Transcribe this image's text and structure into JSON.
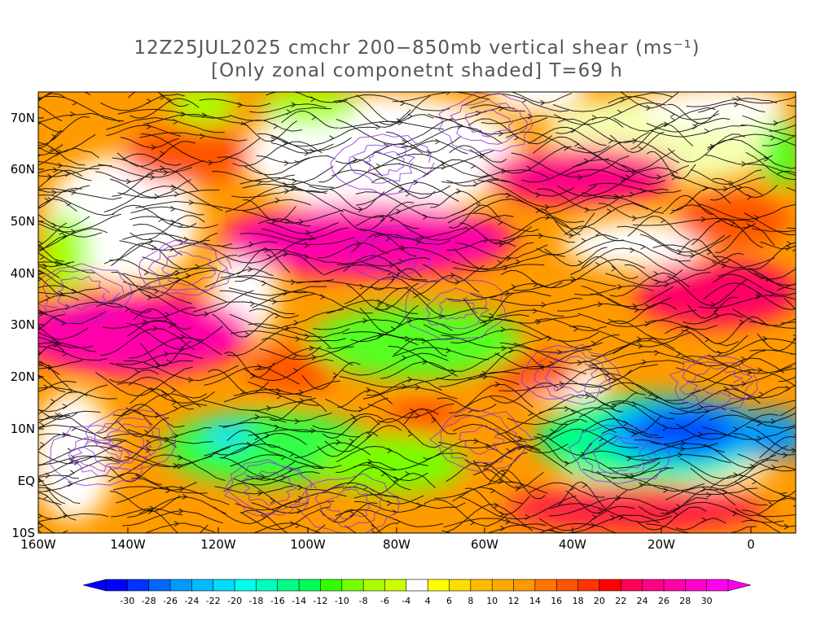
{
  "title": {
    "line1": "12Z25JUL2025 cmchr 200−850mb vertical shear (ms⁻¹)",
    "line2": "[Only zonal componetnt shaded] T=69 h"
  },
  "map": {
    "lon_labels": [
      "160W",
      "140W",
      "120W",
      "100W",
      "80W",
      "60W",
      "40W",
      "20W",
      "0"
    ],
    "lat_labels": [
      "10S",
      "EQ",
      "10N",
      "20N",
      "30N",
      "40N",
      "50N",
      "60N",
      "70N"
    ]
  },
  "colorbar": {
    "labels": [
      "-30",
      "-28",
      "-26",
      "-24",
      "-22",
      "-20",
      "-18",
      "-16",
      "-14",
      "-12",
      "-10",
      "-8",
      "-6",
      "-4",
      "4",
      "6",
      "8",
      "10",
      "12",
      "14",
      "16",
      "18",
      "20",
      "22",
      "24",
      "26",
      "28",
      "30"
    ],
    "colors": [
      "#0000ff",
      "#0033ff",
      "#0066ff",
      "#0099ff",
      "#00bbff",
      "#00ddff",
      "#00ffee",
      "#00ffbb",
      "#00ff88",
      "#00ff55",
      "#33ff00",
      "#77ff00",
      "#aaff00",
      "#ccff00",
      "#ffffff",
      "#ffff00",
      "#ffdd00",
      "#ffbb00",
      "#ffaa00",
      "#ff9900",
      "#ff7700",
      "#ff5500",
      "#ff3300",
      "#ff0000",
      "#ff0055",
      "#ff0088",
      "#ff00aa",
      "#ff00cc",
      "#ff00ee"
    ]
  }
}
